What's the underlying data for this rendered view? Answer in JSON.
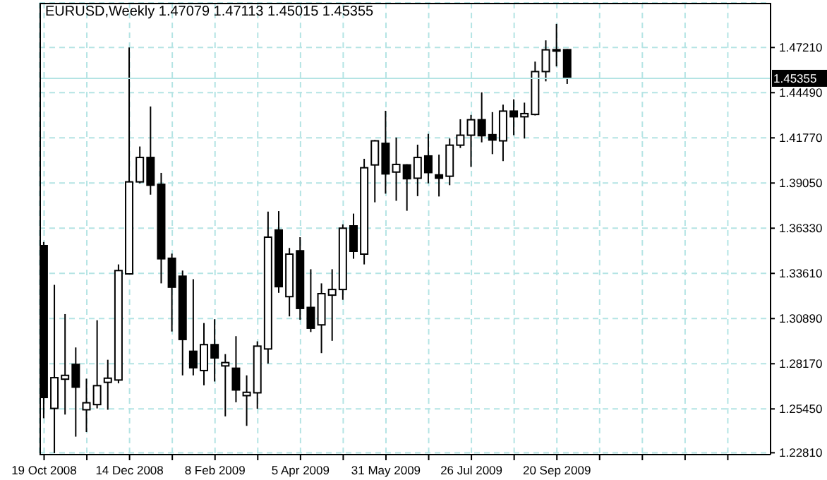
{
  "chart_data": {
    "type": "candlestick",
    "title": "EURUSD,Weekly 1.47079 1.47113 1.45015 1.45355",
    "color": "#000000",
    "x": [
      "2008-10-19",
      "2008-10-26",
      "2008-11-02",
      "2008-11-09",
      "2008-11-16",
      "2008-11-23",
      "2008-11-30",
      "2008-12-07",
      "2008-12-14",
      "2008-12-21",
      "2008-12-28",
      "2009-01-04",
      "2009-01-11",
      "2009-01-18",
      "2009-01-25",
      "2009-02-01",
      "2009-02-08",
      "2009-02-15",
      "2009-02-22",
      "2009-03-01",
      "2009-03-08",
      "2009-03-15",
      "2009-03-22",
      "2009-03-29",
      "2009-04-05",
      "2009-04-12",
      "2009-04-19",
      "2009-04-26",
      "2009-05-03",
      "2009-05-10",
      "2009-05-17",
      "2009-05-24",
      "2009-05-31",
      "2009-06-07",
      "2009-06-14",
      "2009-06-21",
      "2009-06-28",
      "2009-07-05",
      "2009-07-12",
      "2009-07-19",
      "2009-07-26",
      "2009-08-02",
      "2009-08-09",
      "2009-08-16",
      "2009-08-23",
      "2009-08-30",
      "2009-09-06",
      "2009-09-13",
      "2009-09-20",
      "2009-09-27"
    ],
    "ohlc": [
      [
        1.3528,
        1.355,
        1.2489,
        1.2614
      ],
      [
        1.2548,
        1.3292,
        1.2279,
        1.2733
      ],
      [
        1.2724,
        1.3116,
        1.2511,
        1.2747
      ],
      [
        1.2813,
        1.2915,
        1.2378,
        1.2676
      ],
      [
        1.254,
        1.2727,
        1.2406,
        1.2582
      ],
      [
        1.2571,
        1.3079,
        1.2548,
        1.2685
      ],
      [
        1.2705,
        1.2841,
        1.254,
        1.273
      ],
      [
        1.2719,
        1.3415,
        1.2699,
        1.3378
      ],
      [
        1.3358,
        1.4721,
        1.3355,
        1.3912
      ],
      [
        1.3912,
        1.4125,
        1.3903,
        1.4059
      ],
      [
        1.4059,
        1.4366,
        1.3835,
        1.3892
      ],
      [
        1.3897,
        1.3966,
        1.3301,
        1.3449
      ],
      [
        1.3452,
        1.348,
        1.3011,
        1.3278
      ],
      [
        1.3344,
        1.3378,
        1.2747,
        1.2963
      ],
      [
        1.2892,
        1.3326,
        1.2747,
        1.2793
      ],
      [
        1.2776,
        1.3062,
        1.2687,
        1.2932
      ],
      [
        1.2932,
        1.3085,
        1.271,
        1.2852
      ],
      [
        1.2804,
        1.2875,
        1.25,
        1.2824
      ],
      [
        1.279,
        1.2983,
        1.2585,
        1.2659
      ],
      [
        1.2625,
        1.2747,
        1.2443,
        1.2645
      ],
      [
        1.2642,
        1.2952,
        1.2546,
        1.2923
      ],
      [
        1.2906,
        1.3733,
        1.2818,
        1.3579
      ],
      [
        1.3622,
        1.3736,
        1.3244,
        1.3281
      ],
      [
        1.3221,
        1.3514,
        1.3102,
        1.3477
      ],
      [
        1.3497,
        1.3579,
        1.3082,
        1.315
      ],
      [
        1.3156,
        1.3386,
        1.3008,
        1.3031
      ],
      [
        1.3051,
        1.3301,
        1.2881,
        1.3239
      ],
      [
        1.323,
        1.3386,
        1.2955,
        1.3264
      ],
      [
        1.3264,
        1.3656,
        1.3202,
        1.3633
      ],
      [
        1.3647,
        1.3721,
        1.3449,
        1.3494
      ],
      [
        1.3477,
        1.4051,
        1.3415,
        1.3997
      ],
      [
        1.4014,
        1.4164,
        1.3789,
        1.4159
      ],
      [
        1.4144,
        1.434,
        1.3841,
        1.396
      ],
      [
        1.3971,
        1.4179,
        1.3798,
        1.4017
      ],
      [
        1.4014,
        1.4018,
        1.3738,
        1.3931
      ],
      [
        1.3934,
        1.4136,
        1.3826,
        1.4059
      ],
      [
        1.4068,
        1.4201,
        1.3903,
        1.3968
      ],
      [
        1.3954,
        1.4076,
        1.3824,
        1.3934
      ],
      [
        1.3946,
        1.4173,
        1.3892,
        1.4133
      ],
      [
        1.4133,
        1.4289,
        1.4116,
        1.4193
      ],
      [
        1.4193,
        1.4315,
        1.4002,
        1.4286
      ],
      [
        1.4286,
        1.4451,
        1.415,
        1.419
      ],
      [
        1.4196,
        1.4332,
        1.4079,
        1.4164
      ],
      [
        1.4159,
        1.4377,
        1.4037,
        1.4338
      ],
      [
        1.4338,
        1.4409,
        1.4193,
        1.4304
      ],
      [
        1.4304,
        1.4389,
        1.4173,
        1.4323
      ],
      [
        1.4318,
        1.4636,
        1.4312,
        1.4576
      ],
      [
        1.4576,
        1.4764,
        1.4517,
        1.4707
      ],
      [
        1.4705,
        1.4863,
        1.4607,
        1.4708
      ],
      [
        1.47079,
        1.47113,
        1.45015,
        1.45355
      ]
    ],
    "xlim": [
      "2008-10-16",
      "2010-02-07"
    ],
    "xticks": [
      {
        "value": "2008-10-19",
        "label": "19 Oct 2008"
      },
      {
        "value": "2008-11-16",
        "label": null
      },
      {
        "value": "2008-12-14",
        "label": "14 Dec 2008"
      },
      {
        "value": "2009-01-11",
        "label": null
      },
      {
        "value": "2009-02-08",
        "label": "8 Feb 2009"
      },
      {
        "value": "2009-03-08",
        "label": null
      },
      {
        "value": "2009-04-05",
        "label": "5 Apr 2009"
      },
      {
        "value": "2009-05-03",
        "label": null
      },
      {
        "value": "2009-05-31",
        "label": "31 May 2009"
      },
      {
        "value": "2009-06-28",
        "label": null
      },
      {
        "value": "2009-07-26",
        "label": "26 Jul 2009"
      },
      {
        "value": "2009-08-23",
        "label": null
      },
      {
        "value": "2009-09-20",
        "label": "20 Sep 2009"
      },
      {
        "value": "2009-10-18",
        "label": null
      },
      {
        "value": "2009-11-15",
        "label": null
      },
      {
        "value": "2009-12-13",
        "label": null
      },
      {
        "value": "2010-01-10",
        "label": null
      }
    ],
    "ylim": [
      1.227,
      1.499
    ],
    "yticks": [
      {
        "value": 1.2281,
        "label": "1.22810"
      },
      {
        "value": 1.2545,
        "label": "1.25450"
      },
      {
        "value": 1.2817,
        "label": "1.28170"
      },
      {
        "value": 1.3089,
        "label": "1.30890"
      },
      {
        "value": 1.3361,
        "label": "1.33610"
      },
      {
        "value": 1.3633,
        "label": "1.36330"
      },
      {
        "value": 1.3905,
        "label": "1.39050"
      },
      {
        "value": 1.4177,
        "label": "1.41770"
      },
      {
        "value": 1.4449,
        "label": "1.44490"
      },
      {
        "value": 1.4721,
        "label": "1.47210"
      }
    ],
    "ref_lines": [
      {
        "axis": "y",
        "value": 1.45355,
        "label": "1.45355",
        "color": "#b4e4e4"
      }
    ],
    "grid": true
  }
}
